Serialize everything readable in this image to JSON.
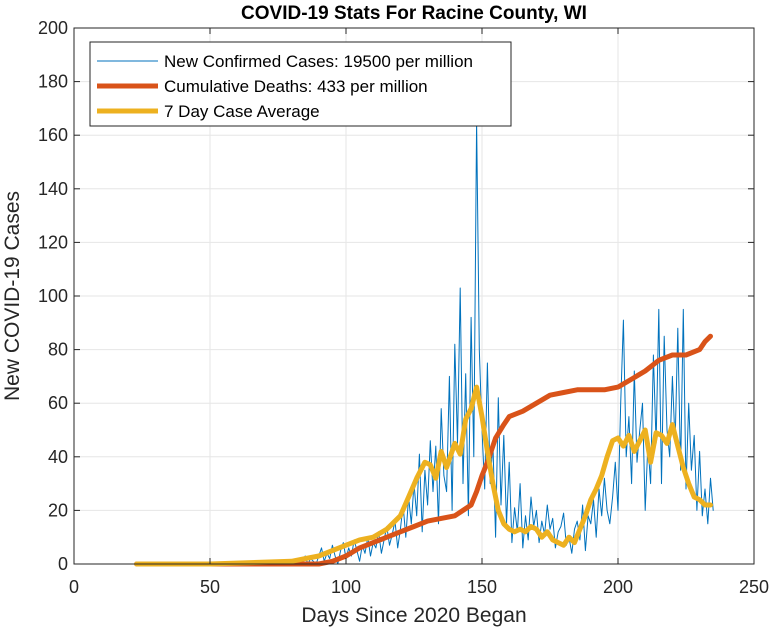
{
  "chart_data": {
    "type": "line",
    "title": "COVID-19 Stats For Racine County, WI",
    "xlabel": "Days Since 2020 Began",
    "ylabel": "New COVID-19 Cases",
    "xlim": [
      0,
      250
    ],
    "ylim": [
      0,
      200
    ],
    "xticks": [
      0,
      50,
      100,
      150,
      200,
      250
    ],
    "yticks": [
      0,
      20,
      40,
      60,
      80,
      100,
      120,
      140,
      160,
      180,
      200
    ],
    "grid": true,
    "legend_position": "top-left",
    "series": [
      {
        "name": "New Confirmed Cases: 19500 per million",
        "color": "#0072BD",
        "x": [
          23,
          30,
          40,
          50,
          60,
          70,
          75,
          78,
          80,
          81,
          82,
          83,
          84,
          85,
          86,
          87,
          88,
          89,
          90,
          91,
          92,
          93,
          94,
          95,
          96,
          97,
          98,
          99,
          100,
          101,
          102,
          103,
          104,
          105,
          106,
          107,
          108,
          109,
          110,
          111,
          112,
          113,
          114,
          115,
          116,
          117,
          118,
          119,
          120,
          121,
          122,
          123,
          124,
          125,
          126,
          127,
          128,
          129,
          130,
          131,
          132,
          133,
          134,
          135,
          136,
          137,
          138,
          139,
          140,
          141,
          142,
          143,
          144,
          145,
          146,
          147,
          148,
          149,
          150,
          151,
          152,
          153,
          154,
          155,
          156,
          157,
          158,
          159,
          160,
          161,
          162,
          163,
          164,
          165,
          166,
          167,
          168,
          169,
          170,
          171,
          172,
          173,
          174,
          175,
          176,
          177,
          178,
          179,
          180,
          181,
          182,
          183,
          184,
          185,
          186,
          187,
          188,
          189,
          190,
          191,
          192,
          193,
          194,
          195,
          196,
          197,
          198,
          199,
          200,
          201,
          202,
          203,
          204,
          205,
          206,
          207,
          208,
          209,
          210,
          211,
          212,
          213,
          214,
          215,
          216,
          217,
          218,
          219,
          220,
          221,
          222,
          223,
          224,
          225,
          226,
          227,
          228,
          229,
          230,
          231,
          232,
          233,
          234,
          235
        ],
        "values": [
          0,
          0,
          0,
          0,
          0,
          0,
          0,
          0,
          1,
          0,
          2,
          0,
          1,
          3,
          0,
          2,
          1,
          0,
          3,
          6,
          1,
          4,
          2,
          7,
          3,
          0,
          5,
          8,
          2,
          6,
          3,
          9,
          5,
          1,
          7,
          4,
          10,
          3,
          8,
          6,
          12,
          4,
          9,
          14,
          7,
          11,
          16,
          6,
          13,
          22,
          10,
          25,
          15,
          30,
          18,
          41,
          12,
          35,
          22,
          46,
          27,
          44,
          15,
          58,
          33,
          27,
          70,
          20,
          82,
          45,
          103,
          30,
          71,
          18,
          92,
          40,
          165,
          80,
          50,
          28,
          75,
          30,
          45,
          10,
          62,
          22,
          48,
          15,
          38,
          8,
          21,
          12,
          30,
          6,
          18,
          9,
          25,
          14,
          20,
          8,
          16,
          11,
          22,
          13,
          17,
          6,
          12,
          14,
          19,
          7,
          10,
          4,
          13,
          16,
          9,
          22,
          5,
          18,
          15,
          24,
          10,
          28,
          18,
          32,
          20,
          15,
          25,
          38,
          20,
          60,
          91,
          40,
          55,
          30,
          72,
          38,
          50,
          60,
          20,
          45,
          30,
          78,
          45,
          95,
          30,
          85,
          50,
          40,
          70,
          45,
          88,
          35,
          95,
          28,
          60,
          35,
          48,
          20,
          42,
          18,
          28,
          15,
          32,
          20
        ],
        "linewidth": 1
      },
      {
        "name": "Cumulative Deaths: 433 per million",
        "color": "#D95319",
        "x": [
          23,
          50,
          80,
          90,
          95,
          100,
          105,
          110,
          115,
          120,
          125,
          130,
          135,
          140,
          143,
          146,
          148,
          150,
          152,
          155,
          158,
          160,
          165,
          170,
          175,
          180,
          185,
          190,
          195,
          200,
          205,
          210,
          215,
          220,
          225,
          230,
          232,
          234
        ],
        "values": [
          0,
          0,
          0,
          0,
          1,
          3,
          6,
          8,
          10,
          12,
          14,
          16,
          17,
          18,
          20,
          22,
          27,
          33,
          38,
          47,
          52,
          55,
          57,
          60,
          63,
          64,
          65,
          65,
          65,
          66,
          69,
          72,
          76,
          78,
          78,
          80,
          83,
          85
        ],
        "linewidth": 5
      },
      {
        "name": "7 Day Case Average",
        "color": "#EDB120",
        "x": [
          23,
          50,
          80,
          85,
          90,
          95,
          100,
          105,
          110,
          115,
          120,
          123,
          126,
          129,
          131,
          133,
          135,
          137,
          140,
          142,
          144,
          146,
          148,
          150,
          152,
          154,
          156,
          158,
          160,
          162,
          164,
          166,
          168,
          170,
          172,
          174,
          176,
          178,
          180,
          182,
          184,
          186,
          188,
          190,
          192,
          194,
          196,
          198,
          200,
          202,
          204,
          206,
          208,
          210,
          212,
          214,
          216,
          218,
          220,
          222,
          224,
          226,
          228,
          230,
          232,
          234
        ],
        "values": [
          0,
          0,
          1,
          2,
          3,
          5,
          7,
          9,
          10,
          13,
          18,
          25,
          32,
          38,
          37,
          32,
          42,
          36,
          45,
          41,
          54,
          58,
          66,
          55,
          42,
          30,
          20,
          15,
          13,
          12,
          13,
          12,
          14,
          13,
          10,
          12,
          9,
          8,
          7,
          10,
          8,
          13,
          18,
          24,
          28,
          33,
          40,
          46,
          47,
          44,
          48,
          42,
          46,
          50,
          38,
          49,
          48,
          45,
          52,
          44,
          36,
          30,
          25,
          24,
          22,
          22
        ],
        "linewidth": 5
      }
    ]
  }
}
